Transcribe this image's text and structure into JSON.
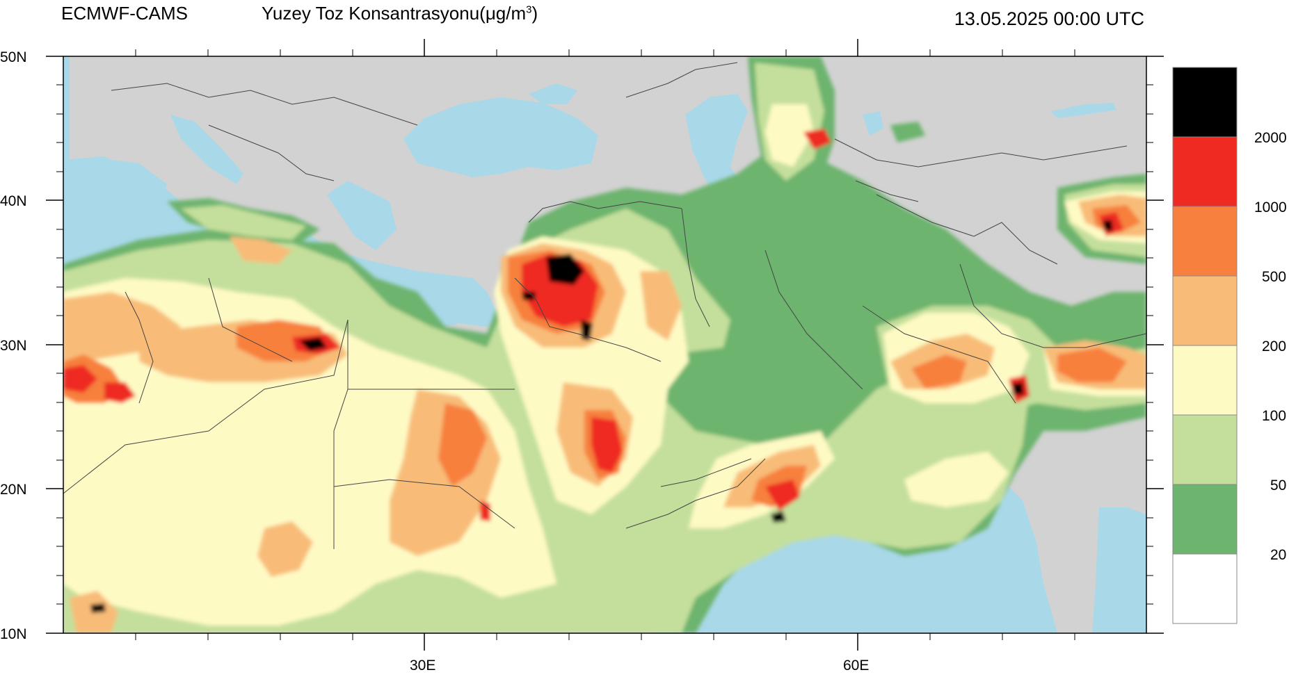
{
  "header": {
    "model": "ECMWF-CAMS",
    "field": "Yuzey Toz Konsantrasyonu(μg/m",
    "field_sup": "3",
    "field_close": ")",
    "datetime": "13.05.2025 00:00 UTC"
  },
  "axes": {
    "lat_labels": [
      "50N",
      "40N",
      "30N",
      "20N",
      "10N"
    ],
    "lon_labels": [
      "30E",
      "60E"
    ]
  },
  "legend": {
    "labels": [
      "2000",
      "1000",
      "500",
      "200",
      "100",
      "50",
      "20"
    ],
    "colors": [
      "#000000",
      "#ee2a23",
      "#f7803e",
      "#f8bc78",
      "#fefac4",
      "#c4df9b",
      "#6db46e",
      "#ffffff"
    ]
  },
  "map_colors": {
    "land_bg": "#d2d2d2",
    "water": "#a9d8e8",
    "border": "#444444"
  }
}
